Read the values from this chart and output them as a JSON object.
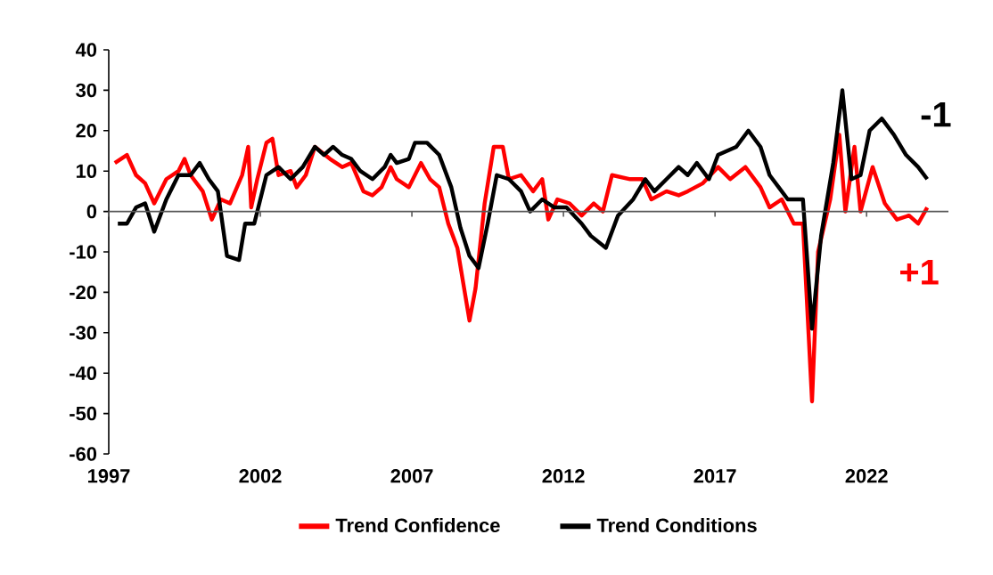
{
  "chart_data": {
    "type": "line",
    "xlim": [
      1997,
      2024.7
    ],
    "xticks": [
      1997,
      2002,
      2007,
      2012,
      2017,
      2022
    ],
    "ylim": [
      -60,
      40
    ],
    "yticks": [
      -60,
      -50,
      -40,
      -30,
      -20,
      -10,
      0,
      10,
      20,
      30,
      40
    ],
    "legend": "bottom",
    "marker": "none",
    "line_style": "solid",
    "annotations": [
      "-1",
      "+1"
    ],
    "series": [
      {
        "name": "Trend Confidence",
        "color": "#ff0000",
        "x": [
          1997.2,
          1997.6,
          1997.9,
          1998.2,
          1998.5,
          1998.9,
          1999.3,
          1999.5,
          1999.7,
          2000.1,
          2000.4,
          2000.7,
          2001.0,
          2001.4,
          2001.6,
          2001.7,
          2001.9,
          2002.2,
          2002.4,
          2002.6,
          2003.0,
          2003.2,
          2003.5,
          2003.8,
          2004.3,
          2004.7,
          2005.0,
          2005.4,
          2005.7,
          2006.0,
          2006.3,
          2006.5,
          2006.9,
          2007.3,
          2007.6,
          2007.9,
          2008.2,
          2008.5,
          2008.9,
          2009.1,
          2009.4,
          2009.7,
          2010.0,
          2010.2,
          2010.6,
          2011.0,
          2011.3,
          2011.5,
          2011.8,
          2012.2,
          2012.6,
          2013.0,
          2013.3,
          2013.6,
          2014.2,
          2014.6,
          2014.9,
          2015.4,
          2015.8,
          2016.1,
          2016.6,
          2017.1,
          2017.5,
          2018.0,
          2018.5,
          2018.8,
          2019.2,
          2019.6,
          2019.9,
          2020.2,
          2020.4,
          2020.8,
          2021.1,
          2021.3,
          2021.6,
          2021.8,
          2022.2,
          2022.6,
          2023.0,
          2023.4,
          2023.7,
          2024.0
        ],
        "values": [
          12,
          14,
          9,
          7,
          2,
          8,
          10,
          13,
          9,
          5,
          -2,
          3,
          2,
          9,
          16,
          1,
          8,
          17,
          18,
          9,
          10,
          6,
          9,
          16,
          13,
          11,
          12,
          5,
          4,
          6,
          11,
          8,
          6,
          12,
          8,
          6,
          -3,
          -9,
          -27,
          -19,
          2,
          16,
          16,
          8,
          9,
          5,
          8,
          -2,
          3,
          2,
          -1,
          2,
          0,
          9,
          8,
          8,
          3,
          5,
          4,
          5,
          7,
          11,
          8,
          11,
          6,
          1,
          3,
          -3,
          -3,
          -47,
          -10,
          3,
          19,
          0,
          16,
          0,
          11,
          2,
          -2,
          -1,
          -3,
          1
        ]
      },
      {
        "name": "Trend Conditions",
        "color": "#000000",
        "x": [
          1997.3,
          1997.6,
          1997.9,
          1998.2,
          1998.5,
          1998.9,
          1999.3,
          1999.7,
          2000.0,
          2000.3,
          2000.6,
          2000.9,
          2001.3,
          2001.5,
          2001.8,
          2002.2,
          2002.6,
          2003.0,
          2003.4,
          2003.8,
          2004.1,
          2004.4,
          2004.7,
          2005.0,
          2005.3,
          2005.7,
          2006.1,
          2006.3,
          2006.5,
          2006.9,
          2007.1,
          2007.5,
          2007.9,
          2008.3,
          2008.6,
          2008.9,
          2009.2,
          2009.5,
          2009.8,
          2010.2,
          2010.6,
          2010.9,
          2011.3,
          2011.7,
          2012.1,
          2012.6,
          2012.9,
          2013.4,
          2013.8,
          2014.3,
          2014.7,
          2015.0,
          2015.4,
          2015.8,
          2016.1,
          2016.4,
          2016.8,
          2017.1,
          2017.7,
          2018.1,
          2018.5,
          2018.8,
          2019.1,
          2019.4,
          2019.9,
          2020.2,
          2020.5,
          2020.9,
          2021.2,
          2021.5,
          2021.8,
          2022.1,
          2022.5,
          2022.9,
          2023.3,
          2023.7,
          2024.0
        ],
        "values": [
          -3,
          -3,
          1,
          2,
          -5,
          3,
          9,
          9,
          12,
          8,
          5,
          -11,
          -12,
          -3,
          -3,
          9,
          11,
          8,
          11,
          16,
          14,
          16,
          14,
          13,
          10,
          8,
          11,
          14,
          12,
          13,
          17,
          17,
          14,
          6,
          -4,
          -11,
          -14,
          -3,
          9,
          8,
          5,
          0,
          3,
          1,
          1,
          -3,
          -6,
          -9,
          -1,
          3,
          8,
          5,
          8,
          11,
          9,
          12,
          8,
          14,
          16,
          20,
          16,
          9,
          6,
          3,
          3,
          -29,
          -6,
          12,
          30,
          8,
          9,
          20,
          23,
          19,
          14,
          11,
          8
        ]
      }
    ]
  }
}
